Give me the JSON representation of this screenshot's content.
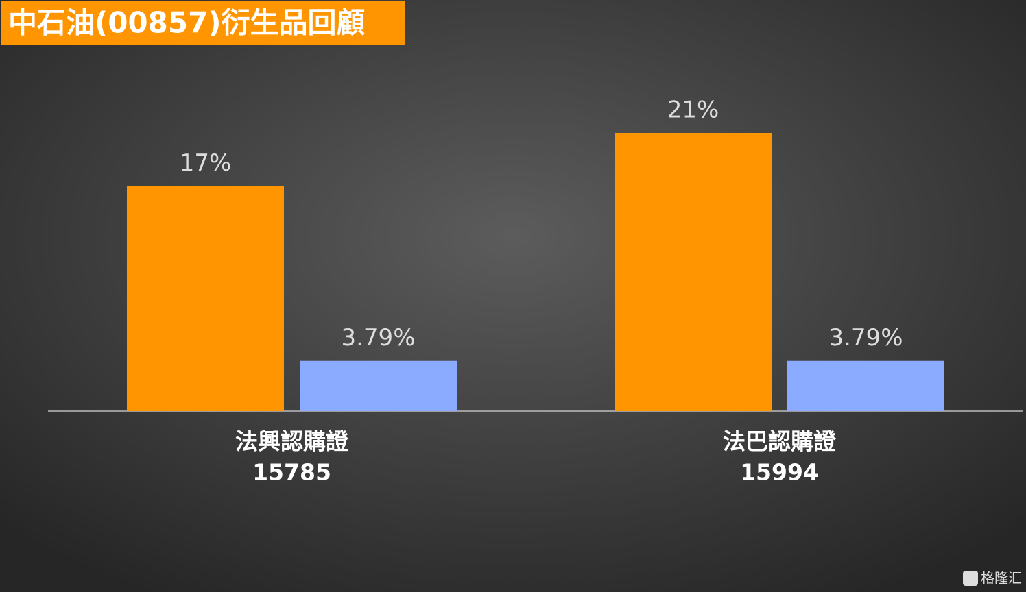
{
  "chart_data": {
    "type": "bar",
    "title": "中石油(00857)衍生品回顧",
    "categories": [
      [
        "法興認購證",
        "15785"
      ],
      [
        "法巴認購證",
        "15994"
      ]
    ],
    "series": [
      {
        "color": "#ff9500",
        "values": [
          17,
          21
        ],
        "value_labels": [
          "17%",
          "21%"
        ]
      },
      {
        "color": "#8aabff",
        "values": [
          3.79,
          3.79
        ],
        "value_labels": [
          "3.79%",
          "3.79%"
        ]
      }
    ],
    "watermark": "格隆汇"
  }
}
